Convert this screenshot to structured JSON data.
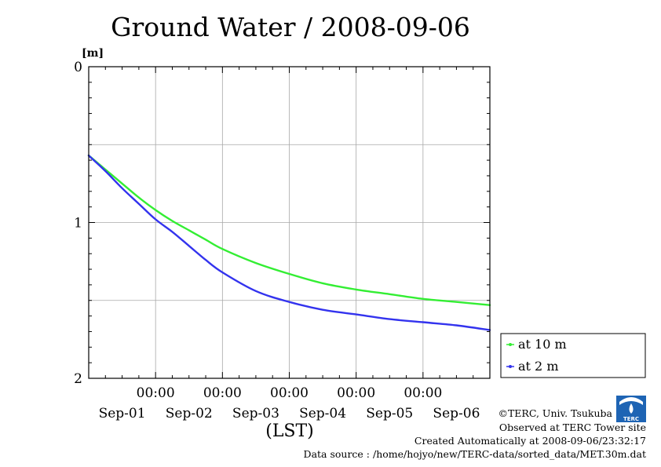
{
  "chart_data": {
    "type": "line",
    "title": "Ground Water / 2008-09-06",
    "ylabel": "[m]",
    "xlabel": "(LST)",
    "y_inverted": true,
    "ylim": [
      0,
      2
    ],
    "y_ticks": [
      {
        "value": 0,
        "label": "0"
      },
      {
        "value": 1,
        "label": "1"
      },
      {
        "value": 2,
        "label": "2"
      }
    ],
    "y_gridlines": [
      0.5,
      1,
      1.5
    ],
    "xlim": [
      0,
      6
    ],
    "x_ticks": [
      {
        "x": 1,
        "time": "00:00",
        "date": "Sep-02"
      },
      {
        "x": 2,
        "time": "00:00",
        "date": "Sep-03"
      },
      {
        "x": 3,
        "time": "00:00",
        "date": "Sep-04"
      },
      {
        "x": 4,
        "time": "00:00",
        "date": "Sep-05"
      },
      {
        "x": 5,
        "time": "00:00",
        "date": "Sep-06"
      }
    ],
    "x_day_labels": [
      {
        "x": 0.5,
        "label": "Sep-01"
      },
      {
        "x": 1.5,
        "label": "Sep-02"
      },
      {
        "x": 2.5,
        "label": "Sep-03"
      },
      {
        "x": 3.5,
        "label": "Sep-04"
      },
      {
        "x": 4.5,
        "label": "Sep-05"
      },
      {
        "x": 5.5,
        "label": "Sep-06"
      }
    ],
    "grid": true,
    "legend_position": "right",
    "series": [
      {
        "name": "at 10 m",
        "color": "#33ee33",
        "x": [
          0,
          0.25,
          0.5,
          0.75,
          1,
          1.25,
          1.5,
          1.75,
          2,
          2.5,
          3,
          3.5,
          4,
          4.5,
          5,
          5.5,
          6
        ],
        "y": [
          0.57,
          0.66,
          0.75,
          0.84,
          0.92,
          0.99,
          1.05,
          1.11,
          1.17,
          1.26,
          1.33,
          1.39,
          1.43,
          1.46,
          1.49,
          1.51,
          1.53
        ]
      },
      {
        "name": "at 2 m",
        "color": "#3333ee",
        "x": [
          0,
          0.25,
          0.5,
          0.75,
          1,
          1.25,
          1.5,
          1.75,
          2,
          2.5,
          3,
          3.5,
          4,
          4.5,
          5,
          5.5,
          6
        ],
        "y": [
          0.57,
          0.67,
          0.78,
          0.88,
          0.98,
          1.06,
          1.15,
          1.24,
          1.32,
          1.44,
          1.51,
          1.56,
          1.59,
          1.62,
          1.64,
          1.66,
          1.69
        ]
      }
    ]
  },
  "footer": {
    "copyright": "©TERC, Univ. Tsukuba",
    "observed": "Observed at TERC Tower site",
    "created": "Created Automatically at 2008-09-06/23:32:17",
    "source": "Data source : /home/hojyo/new/TERC-data/sorted_data/MET.30m.dat"
  },
  "logo": {
    "text": "TERC",
    "color": "#1e64b4"
  }
}
